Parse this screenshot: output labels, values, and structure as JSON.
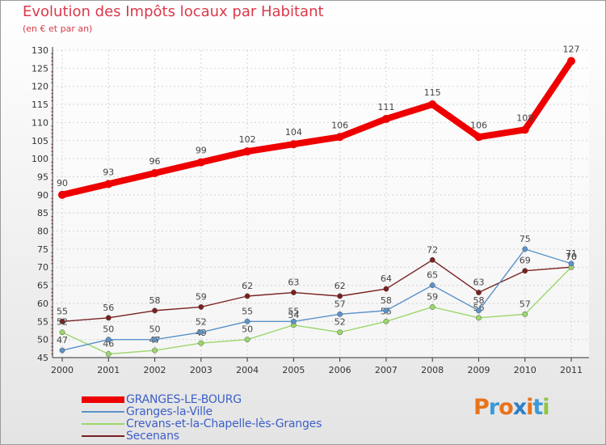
{
  "chart_data": {
    "type": "line",
    "title": "Evolution des Impôts locaux par Habitant",
    "subtitle": "(en € et par an)",
    "x": [
      "2000",
      "2001",
      "2002",
      "2003",
      "2004",
      "2005",
      "2006",
      "2007",
      "2008",
      "2009",
      "2010",
      "2011"
    ],
    "ylim": [
      45,
      130
    ],
    "yticks": [
      45,
      50,
      55,
      60,
      65,
      70,
      75,
      80,
      85,
      90,
      95,
      100,
      105,
      110,
      115,
      120,
      125,
      130
    ],
    "grid": true,
    "legend_position": "bottom-left",
    "series": [
      {
        "name": "GRANGES-LE-BOURG",
        "color": "#ee0000",
        "values": [
          90,
          93,
          96,
          99,
          102,
          104,
          106,
          111,
          115,
          106,
          108,
          127
        ]
      },
      {
        "name": "Granges-la-Ville",
        "color": "#5b92c9",
        "values": [
          47,
          50,
          50,
          52,
          55,
          55,
          57,
          58,
          65,
          58,
          75,
          71
        ]
      },
      {
        "name": "Crevans-et-la-Chapelle-lès-Granges",
        "color": "#9bd76a",
        "values": [
          52,
          46,
          47,
          49,
          50,
          54,
          52,
          55,
          59,
          56,
          57,
          70
        ]
      },
      {
        "name": "Secenans",
        "color": "#7a2020",
        "values": [
          55,
          56,
          58,
          59,
          62,
          63,
          62,
          64,
          72,
          63,
          69,
          70
        ]
      }
    ]
  },
  "logo": {
    "text": "Proxiti"
  }
}
